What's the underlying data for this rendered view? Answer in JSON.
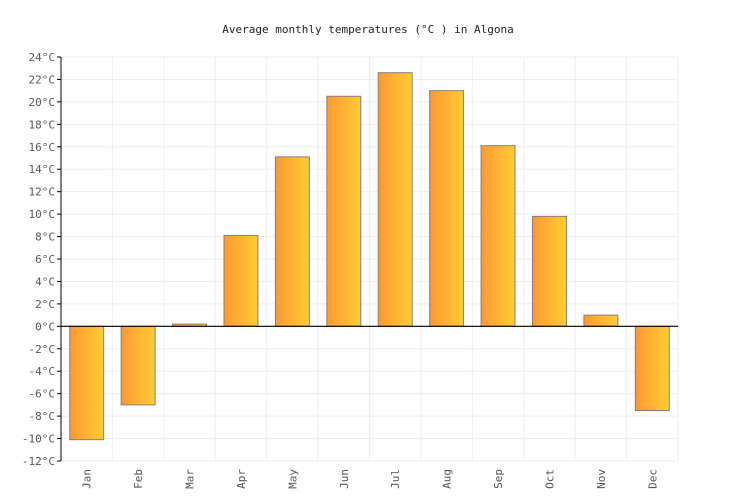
{
  "chart_data": {
    "type": "bar",
    "title": "Average monthly temperatures (°C ) in Algona",
    "xlabel": "",
    "ylabel": "",
    "categories": [
      "Jan",
      "Feb",
      "Mar",
      "Apr",
      "May",
      "Jun",
      "Jul",
      "Aug",
      "Sep",
      "Oct",
      "Nov",
      "Dec"
    ],
    "values": [
      -10.1,
      -7.0,
      0.2,
      8.1,
      15.1,
      20.5,
      22.6,
      21.0,
      16.1,
      9.8,
      1.0,
      -7.5
    ],
    "ylim": [
      -12,
      24
    ],
    "yticks": [
      "24°C",
      "22°C",
      "20°C",
      "18°C",
      "16°C",
      "14°C",
      "12°C",
      "10°C",
      "8°C",
      "6°C",
      "4°C",
      "2°C",
      "0°C",
      "-2°C",
      "-4°C",
      "-6°C",
      "-8°C",
      "-10°C",
      "-12°C"
    ],
    "ytick_values": [
      24,
      22,
      20,
      18,
      16,
      14,
      12,
      10,
      8,
      6,
      4,
      2,
      0,
      -2,
      -4,
      -6,
      -8,
      -10,
      -12
    ],
    "grid": true,
    "legend": "none",
    "colors": {
      "bar_start": "#ff9933",
      "bar_end": "#ffcc33",
      "bar_border": "#808080",
      "grid": "#eeeeee"
    }
  }
}
